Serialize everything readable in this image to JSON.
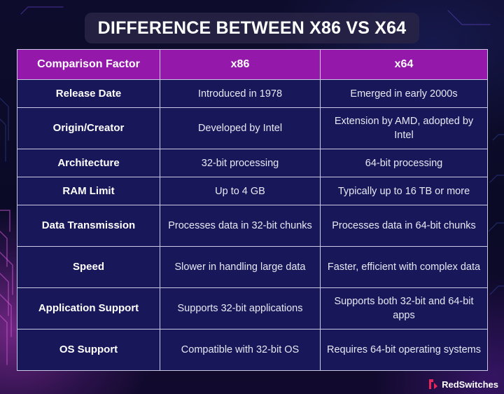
{
  "title": "DIFFERENCE BETWEEN X86 VS X64",
  "table": {
    "headers": [
      "Comparison Factor",
      "x86",
      "x64"
    ],
    "rows": [
      {
        "factor": "Release Date",
        "x86": "Introduced in 1978",
        "x64": "Emerged in early 2000s"
      },
      {
        "factor": "Origin/Creator",
        "x86": "Developed by Intel",
        "x64": "Extension by AMD, adopted by Intel"
      },
      {
        "factor": "Architecture",
        "x86": "32-bit processing",
        "x64": "64-bit processing"
      },
      {
        "factor": "RAM Limit",
        "x86": "Up to 4 GB",
        "x64": "Typically up to 16 TB or more"
      },
      {
        "factor": "Data Transmission",
        "x86": "Processes data in 32-bit chunks",
        "x64": "Processes data in 64-bit chunks"
      },
      {
        "factor": "Speed",
        "x86": "Slower in handling large data",
        "x64": "Faster, efficient with complex data"
      },
      {
        "factor": "Application Support",
        "x86": "Supports 32-bit applications",
        "x64": "Supports both 32-bit and 64-bit apps"
      },
      {
        "factor": "OS Support",
        "x86": "Compatible with 32-bit OS",
        "x64": "Requires 64-bit operating systems"
      }
    ]
  },
  "brand": {
    "name": "RedSwitches",
    "logo_icon": "redswitches-logo-icon",
    "logo_color": "#e8265a"
  },
  "colors": {
    "header_bg": "#9418a9",
    "cell_bg": "#17175a",
    "border": "#c9c9e6"
  }
}
